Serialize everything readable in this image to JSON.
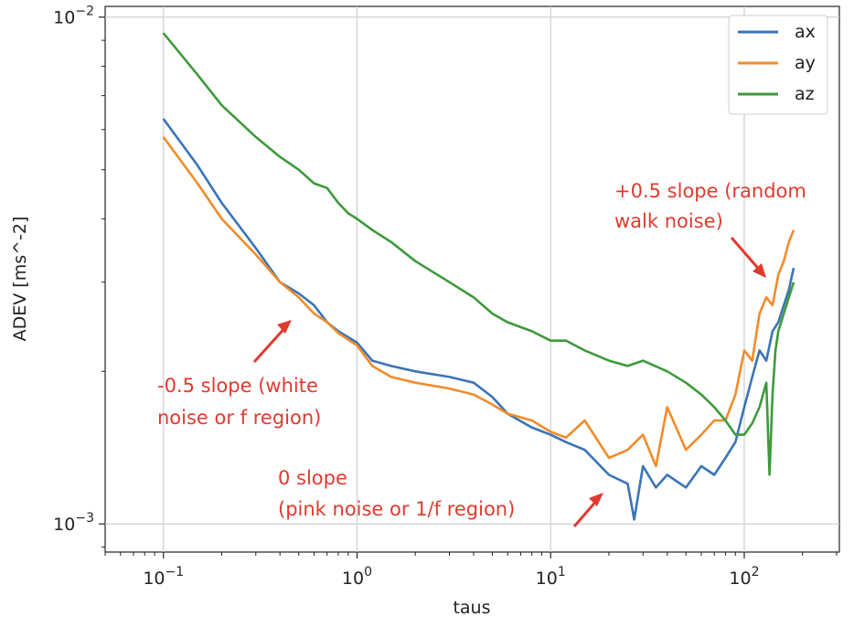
{
  "chart_data": {
    "type": "line",
    "xscale": "log",
    "yscale": "log",
    "xlabel": "taus",
    "ylabel": "ADEV [ms^-2]",
    "xlim": [
      0.05,
      310
    ],
    "ylim": [
      0.00088,
      0.0105
    ],
    "grid": true,
    "legend_position": "top-right",
    "x_ticks": [
      {
        "value": 0.1,
        "base": "10",
        "exp": "−1"
      },
      {
        "value": 1,
        "base": "10",
        "exp": "0"
      },
      {
        "value": 10,
        "base": "10",
        "exp": "1"
      },
      {
        "value": 100,
        "base": "10",
        "exp": "2"
      }
    ],
    "y_ticks": [
      {
        "value": 0.01,
        "base": "10",
        "exp": "−2"
      },
      {
        "value": 0.001,
        "base": "10",
        "exp": "−3"
      }
    ],
    "series": [
      {
        "name": "ax",
        "color": "#3a74b6",
        "x": [
          0.1,
          0.15,
          0.2,
          0.3,
          0.4,
          0.5,
          0.6,
          0.7,
          0.8,
          1.0,
          1.2,
          1.5,
          2.0,
          3.0,
          4.0,
          5.0,
          6.0,
          8.0,
          10.0,
          12.0,
          15.0,
          20.0,
          25.0,
          27.0,
          30.0,
          35.0,
          40.0,
          50.0,
          60.0,
          70.0,
          80.0,
          90.0,
          100.0,
          110.0,
          120.0,
          130.0,
          140.0,
          150.0,
          160.0,
          170.0,
          180.0
        ],
        "y": [
          0.0063,
          0.0051,
          0.0043,
          0.0035,
          0.003,
          0.00285,
          0.0027,
          0.0025,
          0.0024,
          0.00228,
          0.0021,
          0.00205,
          0.002,
          0.00195,
          0.0019,
          0.00178,
          0.00165,
          0.00155,
          0.0015,
          0.00145,
          0.0014,
          0.00125,
          0.0012,
          0.00102,
          0.0013,
          0.00118,
          0.00125,
          0.00118,
          0.0013,
          0.00125,
          0.00135,
          0.00145,
          0.0017,
          0.00195,
          0.0022,
          0.0021,
          0.0024,
          0.0025,
          0.0027,
          0.0029,
          0.0032
        ]
      },
      {
        "name": "ay",
        "color": "#f08c2b",
        "x": [
          0.1,
          0.15,
          0.2,
          0.3,
          0.4,
          0.5,
          0.6,
          0.7,
          0.8,
          1.0,
          1.2,
          1.5,
          2.0,
          3.0,
          4.0,
          5.0,
          6.0,
          8.0,
          10.0,
          12.0,
          15.0,
          20.0,
          25.0,
          30.0,
          35.0,
          40.0,
          50.0,
          60.0,
          70.0,
          80.0,
          90.0,
          100.0,
          110.0,
          120.0,
          130.0,
          140.0,
          150.0,
          160.0,
          170.0,
          180.0
        ],
        "y": [
          0.0058,
          0.0047,
          0.004,
          0.0034,
          0.003,
          0.0028,
          0.0026,
          0.0025,
          0.00238,
          0.00225,
          0.00205,
          0.00195,
          0.0019,
          0.00185,
          0.0018,
          0.00172,
          0.00165,
          0.0016,
          0.00152,
          0.00148,
          0.0016,
          0.00135,
          0.0014,
          0.0015,
          0.0013,
          0.0017,
          0.0014,
          0.0015,
          0.0016,
          0.0016,
          0.0018,
          0.0022,
          0.0021,
          0.0026,
          0.0028,
          0.0027,
          0.0031,
          0.0033,
          0.0036,
          0.0038
        ]
      },
      {
        "name": "az",
        "color": "#3d9a3b",
        "x": [
          0.1,
          0.15,
          0.2,
          0.3,
          0.4,
          0.5,
          0.6,
          0.7,
          0.8,
          0.9,
          1.0,
          1.2,
          1.5,
          2.0,
          3.0,
          4.0,
          5.0,
          6.0,
          8.0,
          10.0,
          12.0,
          15.0,
          20.0,
          25.0,
          30.0,
          40.0,
          50.0,
          60.0,
          70.0,
          80.0,
          90.0,
          100.0,
          110.0,
          120.0,
          130.0,
          135.0,
          140.0,
          145.0,
          150.0,
          160.0,
          170.0,
          180.0
        ],
        "y": [
          0.0093,
          0.0077,
          0.0067,
          0.0058,
          0.0053,
          0.005,
          0.0047,
          0.0046,
          0.0043,
          0.0041,
          0.004,
          0.0038,
          0.0036,
          0.0033,
          0.003,
          0.0028,
          0.0026,
          0.0025,
          0.0024,
          0.0023,
          0.0023,
          0.0022,
          0.0021,
          0.00205,
          0.0021,
          0.002,
          0.0019,
          0.0018,
          0.0017,
          0.0016,
          0.0015,
          0.0015,
          0.00158,
          0.0017,
          0.0019,
          0.00125,
          0.0018,
          0.0022,
          0.0024,
          0.0026,
          0.0028,
          0.003
        ]
      }
    ],
    "annotations": [
      {
        "lines": [
          "+0.5 slope (random",
          "walk noise)"
        ]
      },
      {
        "lines": [
          "-0.5 slope (white",
          "noise or f region)"
        ]
      },
      {
        "lines": [
          "0 slope",
          "(pink noise or 1/f region)"
        ]
      }
    ]
  }
}
